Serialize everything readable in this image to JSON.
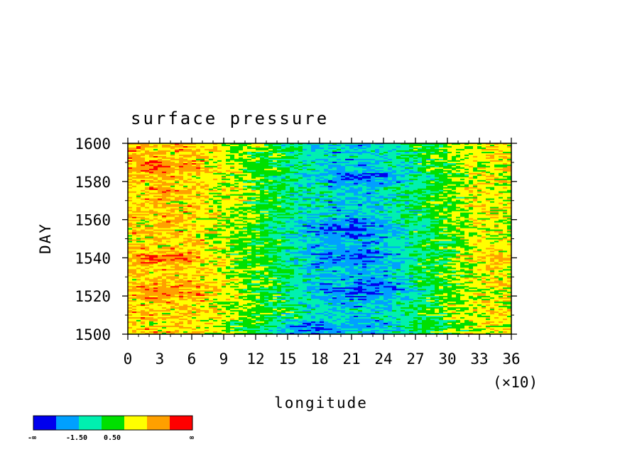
{
  "chart_data": {
    "type": "heatmap",
    "title": "surface pressure",
    "xlabel": "longitude",
    "ylabel": "DAY",
    "x_scale_note": "(×10)",
    "xlim": [
      0,
      36
    ],
    "ylim": [
      1500,
      1600
    ],
    "x_ticks": [
      "0",
      "3",
      "6",
      "9",
      "12",
      "15",
      "18",
      "21",
      "24",
      "27",
      "30",
      "33",
      "36"
    ],
    "y_ticks": [
      "1500",
      "1520",
      "1540",
      "1560",
      "1580",
      "1600"
    ],
    "colorbar": {
      "colors": [
        "#0000ee",
        "#00a0ff",
        "#00f0b0",
        "#00e000",
        "#ffff00",
        "#ffa000",
        "#ff0000"
      ],
      "labels": [
        "-∞",
        "-1.50",
        "0.50",
        "∞"
      ]
    },
    "pattern_note": "Zonal bands: high values (yellow/orange/red) at longitudes 0–120 and 300–360; low values (blue) concentrated near 150–270, especially around days 1505, 1525, 1540, 1555 and 1582."
  }
}
